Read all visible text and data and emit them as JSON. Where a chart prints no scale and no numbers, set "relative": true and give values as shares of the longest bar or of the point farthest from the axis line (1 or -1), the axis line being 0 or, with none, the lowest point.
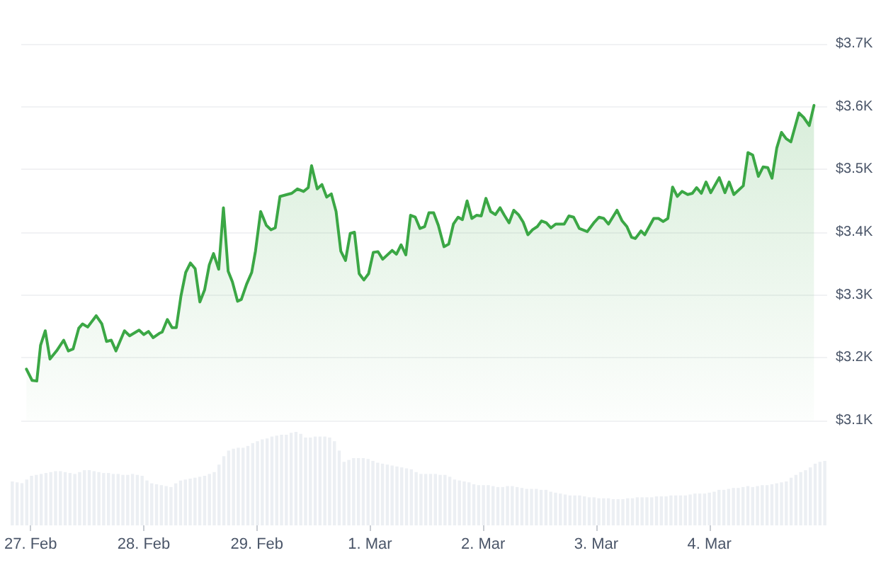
{
  "chart_data": [
    {
      "type": "area",
      "xlim": [
        "--02-26T22:00",
        "--03-05T01:00"
      ],
      "xticks": [
        {
          "value": "--02-27",
          "label": "27. Feb"
        },
        {
          "value": "--02-28",
          "label": "28. Feb"
        },
        {
          "value": "--02-29",
          "label": "29. Feb"
        },
        {
          "value": "--03-01",
          "label": "1. Mar"
        },
        {
          "value": "--03-02",
          "label": "2. Mar"
        },
        {
          "value": "--03-03",
          "label": "3. Mar"
        },
        {
          "value": "--03-04",
          "label": "4. Mar"
        }
      ],
      "ylim": [
        3100,
        3700
      ],
      "yticks": [
        {
          "value": 3100,
          "label": "$3.1K"
        },
        {
          "value": 3200,
          "label": "$3.2K"
        },
        {
          "value": 3300,
          "label": "$3.3K"
        },
        {
          "value": 3400,
          "label": "$3.4K"
        },
        {
          "value": 3500,
          "label": "$3.5K"
        },
        {
          "value": 3600,
          "label": "$3.6K"
        },
        {
          "value": 3700,
          "label": "$3.7K"
        }
      ],
      "grid": "y",
      "marker": "none",
      "x": [
        "--02-26T23:06",
        "--02-27T00:18",
        "--02-27T01:18",
        "--02-27T02:06",
        "--02-27T03:06",
        "--02-27T04:06",
        "--02-27T05:30",
        "--02-27T07:00",
        "--02-27T08:00",
        "--02-27T09:00",
        "--02-27T10:12",
        "--02-27T11:00",
        "--02-27T12:06",
        "--02-27T13:54",
        "--02-27T15:06",
        "--02-27T16:06",
        "--02-27T17:06",
        "--02-27T18:06",
        "--02-27T19:54",
        "--02-27T21:00",
        "--02-27T23:00",
        "--02-28T00:00",
        "--02-28T01:00",
        "--02-28T02:00",
        "--02-28T03:18",
        "--02-28T03:54",
        "--02-28T05:00",
        "--02-28T06:00",
        "--02-28T06:54",
        "--02-28T07:54",
        "--02-28T08:54",
        "--02-28T09:54",
        "--02-28T10:54",
        "--02-28T11:54",
        "--02-28T12:54",
        "--02-28T13:54",
        "--02-28T14:48",
        "--02-28T15:54",
        "--02-28T16:54",
        "--02-28T17:54",
        "--02-28T18:48",
        "--02-28T19:54",
        "--02-28T20:42",
        "--02-28T21:48",
        "--02-28T22:54",
        "--02-28T23:42",
        "--02-29T00:48",
        "--02-29T02:00",
        "--02-29T03:00",
        "--02-29T03:54",
        "--02-29T04:54",
        "--02-29T06:24",
        "--02-29T07:24",
        "--02-29T08:36",
        "--02-29T09:54",
        "--02-29T10:54",
        "--02-29T11:36",
        "--02-29T12:48",
        "--02-29T13:48",
        "--02-29T14:48",
        "--02-29T15:48",
        "--02-29T16:48",
        "--02-29T17:48",
        "--02-29T18:48",
        "--02-29T19:48",
        "--02-29T20:42",
        "--02-29T21:42",
        "--02-29T22:42",
        "--02-29T23:42",
        "--03-01T00:42",
        "--03-01T01:42",
        "--03-01T02:42",
        "--03-01T04:42",
        "--03-01T05:36",
        "--03-01T06:36",
        "--03-01T07:36",
        "--03-01T08:36",
        "--03-01T09:36",
        "--03-01T10:36",
        "--03-01T11:36",
        "--03-01T12:30",
        "--03-01T13:30",
        "--03-01T14:30",
        "--03-01T15:42",
        "--03-01T16:42",
        "--03-01T17:42",
        "--03-01T18:42",
        "--03-01T19:36",
        "--03-01T20:36",
        "--03-01T21:36",
        "--03-01T22:36",
        "--03-01T23:36",
        "--03-02T00:36",
        "--03-02T01:36",
        "--03-02T02:36",
        "--03-02T03:36",
        "--03-02T04:30",
        "--03-02T05:30",
        "--03-02T06:30",
        "--03-02T07:30",
        "--03-02T08:30",
        "--03-02T09:30",
        "--03-02T10:30",
        "--03-02T11:30",
        "--03-02T12:24",
        "--03-02T13:24",
        "--03-02T14:24",
        "--03-02T15:24",
        "--03-02T17:12",
        "--03-02T18:12",
        "--03-02T19:12",
        "--03-02T20:24",
        "--03-02T22:06",
        "--03-02T23:36",
        "--03-03T00:36",
        "--03-03T01:36",
        "--03-03T02:36",
        "--03-03T04:24",
        "--03-03T05:30",
        "--03-03T06:30",
        "--03-03T07:30",
        "--03-03T08:18",
        "--03-03T09:30",
        "--03-03T10:18",
        "--03-03T12:12",
        "--03-03T13:12",
        "--03-03T14:12",
        "--03-03T15:12",
        "--03-03T16:12",
        "--03-03T17:12",
        "--03-03T18:12",
        "--03-03T19:24",
        "--03-03T20:24",
        "--03-03T21:18",
        "--03-03T22:18",
        "--03-03T23:18",
        "--03-04T00:18",
        "--03-04T02:06",
        "--03-04T03:18",
        "--03-04T04:12",
        "--03-04T05:12",
        "--03-04T07:12",
        "--03-04T08:12",
        "--03-04T09:12",
        "--03-04T10:24",
        "--03-04T11:24",
        "--03-04T12:24",
        "--03-04T13:18",
        "--03-04T14:18",
        "--03-04T15:18",
        "--03-04T16:18",
        "--03-04T17:18",
        "--03-04T19:00",
        "--03-04T20:00",
        "--03-04T21:12",
        "--03-04T22:12"
      ],
      "series": [
        {
          "color": "#3ba745",
          "values": [
            3182,
            3164,
            3163,
            3220,
            3243,
            3198,
            3211,
            3228,
            3211,
            3214,
            3247,
            3254,
            3249,
            3267,
            3254,
            3226,
            3228,
            3211,
            3243,
            3235,
            3244,
            3237,
            3242,
            3232,
            3239,
            3241,
            3261,
            3248,
            3248,
            3299,
            3336,
            3351,
            3342,
            3289,
            3308,
            3348,
            3366,
            3341,
            3439,
            3338,
            3321,
            3290,
            3293,
            3317,
            3336,
            3370,
            3433,
            3411,
            3404,
            3407,
            3457,
            3460,
            3462,
            3469,
            3465,
            3471,
            3506,
            3469,
            3476,
            3456,
            3461,
            3433,
            3370,
            3355,
            3398,
            3400,
            3334,
            3324,
            3334,
            3368,
            3369,
            3357,
            3371,
            3365,
            3380,
            3364,
            3427,
            3424,
            3406,
            3409,
            3431,
            3431,
            3411,
            3377,
            3381,
            3413,
            3424,
            3420,
            3450,
            3422,
            3427,
            3426,
            3454,
            3433,
            3428,
            3439,
            3427,
            3415,
            3435,
            3428,
            3416,
            3396,
            3404,
            3409,
            3418,
            3415,
            3407,
            3413,
            3413,
            3426,
            3424,
            3406,
            3401,
            3416,
            3424,
            3422,
            3413,
            3435,
            3418,
            3409,
            3392,
            3390,
            3402,
            3396,
            3422,
            3422,
            3417,
            3422,
            3472,
            3457,
            3465,
            3460,
            3462,
            3471,
            3462,
            3480,
            3463,
            3487,
            3463,
            3480,
            3460,
            3474,
            3527,
            3523,
            3489,
            3504,
            3503,
            3486,
            3534,
            3559,
            3549,
            3544,
            3590,
            3583,
            3570,
            3602
          ]
        }
      ]
    },
    {
      "type": "bar",
      "relative": true,
      "tick_labels": false,
      "categories": [
        null,
        null,
        null,
        null,
        null,
        null,
        null,
        null,
        null,
        null,
        null,
        null,
        null,
        null,
        null,
        null,
        null,
        null,
        null,
        null,
        null,
        null,
        null,
        null,
        null,
        null,
        null,
        null,
        null,
        null,
        null,
        null,
        null,
        null,
        null,
        null,
        null,
        null,
        null,
        null,
        null,
        null,
        null,
        null,
        null,
        null,
        null,
        null,
        null,
        null,
        null,
        null,
        null,
        null,
        null,
        null,
        null,
        null,
        null,
        null,
        null,
        null,
        null,
        null,
        null,
        null,
        null,
        null,
        null,
        null,
        null,
        null,
        null,
        null,
        null,
        null,
        null,
        null,
        null,
        null,
        null,
        null,
        null,
        null,
        null,
        null,
        null,
        null,
        null,
        null,
        null,
        null,
        null,
        null,
        null,
        null,
        null,
        null,
        null,
        null,
        null,
        null,
        null,
        null,
        null,
        null,
        null,
        null,
        null,
        null,
        null,
        null,
        null,
        null,
        null,
        null,
        null,
        null,
        null,
        null,
        null,
        null,
        null,
        null,
        null,
        null,
        null,
        null,
        null,
        null,
        null,
        null,
        null,
        null,
        null,
        null,
        null,
        null,
        null,
        null,
        null,
        null,
        null,
        null,
        null,
        null,
        null,
        null,
        null,
        null,
        null,
        null,
        null,
        null,
        null,
        null,
        null,
        null,
        null,
        null,
        null,
        null,
        null,
        null,
        null,
        null,
        null,
        null,
        null,
        null
      ],
      "series": [
        {
          "color": "#eceff3",
          "values": [
            0.47,
            0.46,
            0.45,
            0.49,
            0.53,
            0.54,
            0.55,
            0.56,
            0.57,
            0.58,
            0.58,
            0.57,
            0.56,
            0.55,
            0.57,
            0.59,
            0.59,
            0.58,
            0.57,
            0.56,
            0.56,
            0.55,
            0.55,
            0.54,
            0.54,
            0.55,
            0.54,
            0.53,
            0.48,
            0.45,
            0.44,
            0.43,
            0.42,
            0.41,
            0.45,
            0.48,
            0.49,
            0.5,
            0.51,
            0.52,
            0.53,
            0.55,
            0.57,
            0.65,
            0.74,
            0.8,
            0.82,
            0.83,
            0.83,
            0.85,
            0.88,
            0.9,
            0.92,
            0.93,
            0.95,
            0.96,
            0.97,
            0.97,
            0.99,
            1,
            0.98,
            0.94,
            0.94,
            0.95,
            0.95,
            0.95,
            0.94,
            0.9,
            0.8,
            0.68,
            0.7,
            0.72,
            0.72,
            0.72,
            0.71,
            0.69,
            0.67,
            0.66,
            0.65,
            0.64,
            0.63,
            0.62,
            0.61,
            0.6,
            0.57,
            0.55,
            0.55,
            0.55,
            0.55,
            0.54,
            0.54,
            0.52,
            0.49,
            0.48,
            0.47,
            0.46,
            0.44,
            0.43,
            0.43,
            0.43,
            0.42,
            0.41,
            0.41,
            0.42,
            0.42,
            0.41,
            0.4,
            0.39,
            0.39,
            0.39,
            0.38,
            0.38,
            0.36,
            0.35,
            0.34,
            0.33,
            0.32,
            0.32,
            0.32,
            0.31,
            0.3,
            0.3,
            0.29,
            0.29,
            0.29,
            0.28,
            0.28,
            0.28,
            0.29,
            0.29,
            0.3,
            0.3,
            0.3,
            0.3,
            0.31,
            0.31,
            0.31,
            0.32,
            0.32,
            0.32,
            0.32,
            0.33,
            0.34,
            0.34,
            0.34,
            0.35,
            0.36,
            0.38,
            0.38,
            0.39,
            0.4,
            0.4,
            0.41,
            0.42,
            0.41,
            0.42,
            0.43,
            0.43,
            0.44,
            0.45,
            0.46,
            0.47,
            0.51,
            0.54,
            0.57,
            0.59,
            0.62,
            0.66,
            0.68,
            0.69
          ]
        }
      ]
    }
  ]
}
